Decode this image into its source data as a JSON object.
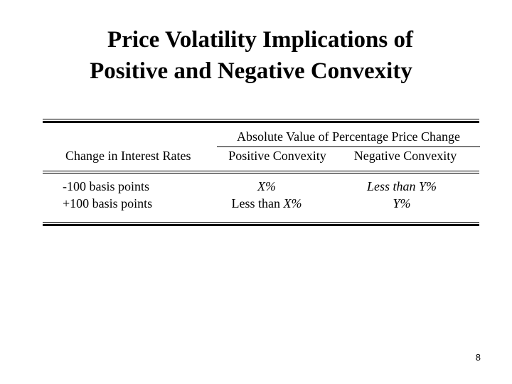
{
  "title": {
    "line1": "Price Volatility Implications of",
    "line2": "Positive and Negative Convexity"
  },
  "table": {
    "group_header": "Absolute Value of Percentage Price Change",
    "columns": [
      "Change in Interest Rates",
      "Positive Convexity",
      "Negative Convexity"
    ],
    "rows": [
      {
        "change": "-100 basis points",
        "positive_prefix": "",
        "positive_var": "X%",
        "negative": "Less than Y%"
      },
      {
        "change": "+100 basis points",
        "positive_prefix": "Less than ",
        "positive_var": "X%",
        "negative": "Y%"
      }
    ]
  },
  "page_number": "8"
}
